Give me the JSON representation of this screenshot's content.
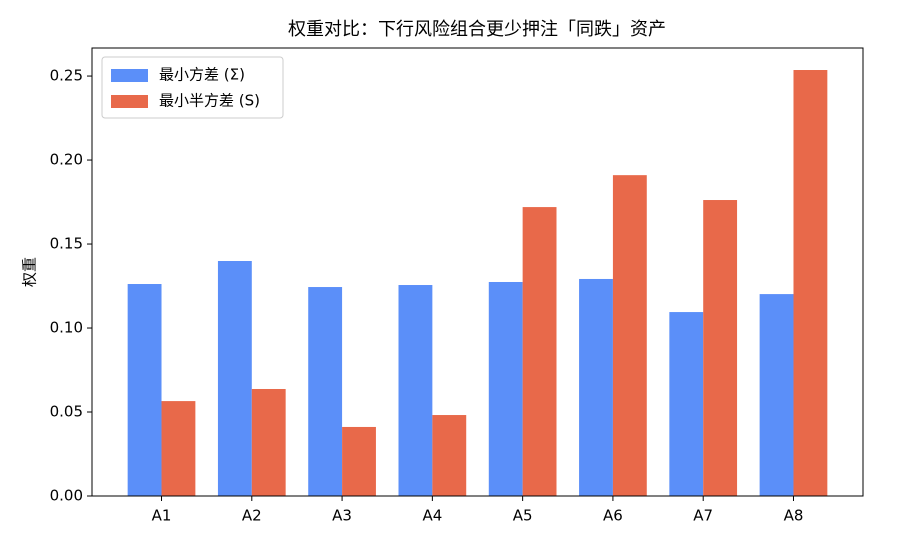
{
  "chart_data": {
    "type": "bar",
    "title": "权重对比：下行风险组合更少押注「同跌」资产",
    "ylabel": "权重",
    "categories": [
      "A1",
      "A2",
      "A3",
      "A4",
      "A5",
      "A6",
      "A7",
      "A8"
    ],
    "series": [
      {
        "name": "最小方差 (Σ)",
        "color": "#5b8ff9",
        "values": [
          0.1262,
          0.1399,
          0.1244,
          0.1256,
          0.1274,
          0.1292,
          0.1095,
          0.1202
        ]
      },
      {
        "name": "最小半方差 (S)",
        "color": "#e8694a",
        "values": [
          0.0565,
          0.0637,
          0.0411,
          0.0482,
          0.172,
          0.191,
          0.1762,
          0.2536
        ]
      }
    ],
    "ylim": [
      0,
      0.2667
    ],
    "yticks": [
      {
        "value": 0,
        "label": "0.00"
      },
      {
        "value": 0.05,
        "label": "0.05"
      },
      {
        "value": 0.1,
        "label": "0.10"
      },
      {
        "value": 0.15,
        "label": "0.15"
      },
      {
        "value": 0.2,
        "label": "0.20"
      },
      {
        "value": 0.25,
        "label": "0.25"
      }
    ],
    "legend": "upper left",
    "grid": false
  }
}
